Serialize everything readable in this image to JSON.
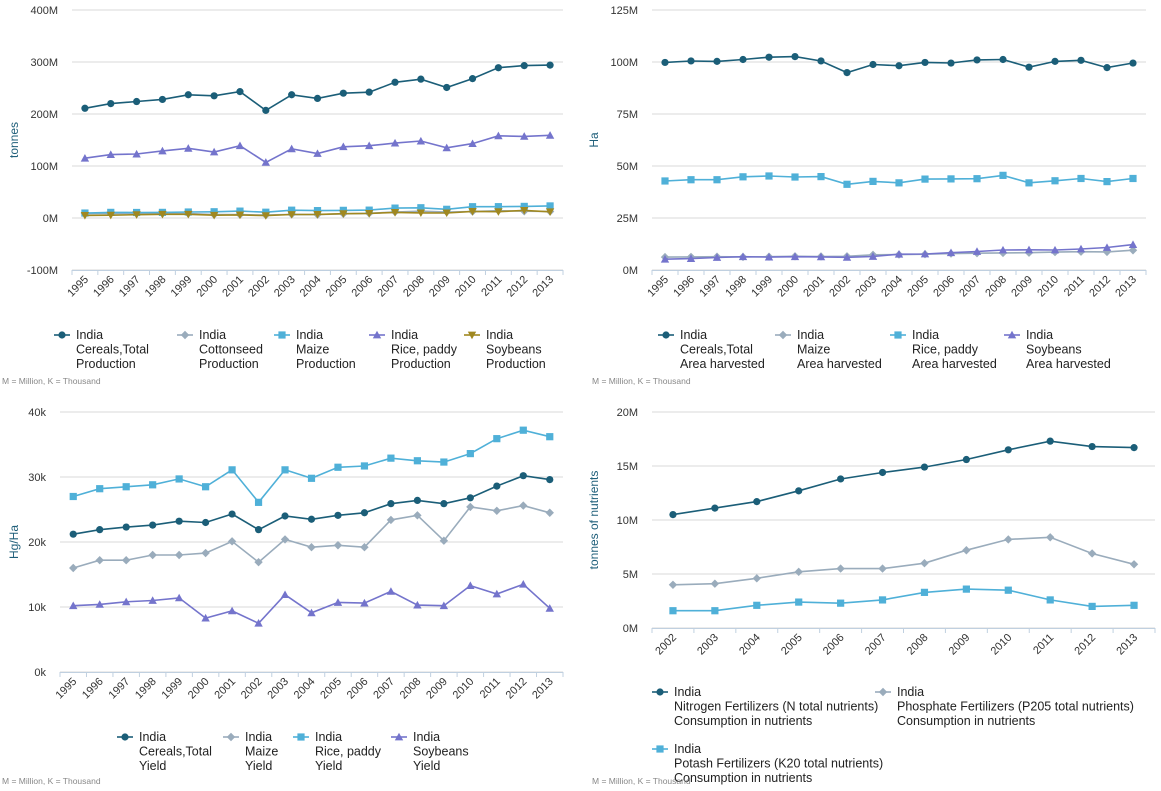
{
  "note": "M = Million, K = Thousand",
  "chart_data": [
    {
      "type": "line",
      "ylabel": "tonnes",
      "xlabel": "",
      "ylim": [
        -100000000,
        400000000
      ],
      "yticks": [
        -100000000,
        0,
        100000000,
        200000000,
        300000000,
        400000000
      ],
      "ytick_labels": [
        "-100M",
        "0M",
        "100M",
        "200M",
        "300M",
        "400M"
      ],
      "categories": [
        "1995",
        "1996",
        "1997",
        "1998",
        "1999",
        "2000",
        "2001",
        "2002",
        "2003",
        "2004",
        "2005",
        "2006",
        "2007",
        "2008",
        "2009",
        "2010",
        "2011",
        "2012",
        "2013"
      ],
      "series": [
        {
          "name": "India",
          "sublabel": [
            "Cereals,Total",
            "Production"
          ],
          "color": "#1b5e78",
          "marker": "circle",
          "values": [
            211000000,
            220000000,
            224000000,
            228000000,
            237000000,
            235000000,
            243000000,
            207000000,
            237000000,
            230000000,
            240000000,
            242000000,
            261000000,
            267000000,
            251000000,
            268000000,
            289000000,
            293000000,
            294000000
          ]
        },
        {
          "name": "India",
          "sublabel": [
            "Cottonseed",
            "Production"
          ],
          "color": "#9aacbc",
          "marker": "diamond",
          "values": [
            8500000,
            9000000,
            8500000,
            8500000,
            8500000,
            6500000,
            6500000,
            5500000,
            7000000,
            6500000,
            8000000,
            9000000,
            11500000,
            13000000,
            11500000,
            12500000,
            14000000,
            13000000,
            12500000
          ]
        },
        {
          "name": "India",
          "sublabel": [
            "Maize",
            "Production"
          ],
          "color": "#4fb0d8",
          "marker": "square",
          "values": [
            9500000,
            10800000,
            10600000,
            10800000,
            11500000,
            12000000,
            13200000,
            11100000,
            15000000,
            14200000,
            14700000,
            15100000,
            19000000,
            19700000,
            16700000,
            21700000,
            21800000,
            22300000,
            23200000
          ]
        },
        {
          "name": "India",
          "sublabel": [
            "Rice, paddy",
            "Production"
          ],
          "color": "#7474cc",
          "marker": "triangle",
          "values": [
            115000000,
            122000000,
            123000000,
            129000000,
            134000000,
            127000000,
            139000000,
            107000000,
            133000000,
            124000000,
            137000000,
            139000000,
            144000000,
            148000000,
            135000000,
            143000000,
            158000000,
            157000000,
            159000000
          ]
        },
        {
          "name": "India",
          "sublabel": [
            "Soybeans",
            "Production"
          ],
          "color": "#a08820",
          "marker": "triangle-down",
          "values": [
            5000000,
            5400000,
            6400000,
            7100000,
            7100000,
            5300000,
            5900000,
            4600000,
            6800000,
            6900000,
            8300000,
            8900000,
            10700000,
            9900000,
            9700000,
            12700000,
            12200000,
            14700000,
            12000000
          ]
        }
      ]
    },
    {
      "type": "line",
      "ylabel": "Ha",
      "xlabel": "",
      "ylim": [
        0,
        125000000
      ],
      "yticks": [
        0,
        25000000,
        50000000,
        75000000,
        100000000,
        125000000
      ],
      "ytick_labels": [
        "0M",
        "25M",
        "50M",
        "75M",
        "100M",
        "125M"
      ],
      "categories": [
        "1995",
        "1996",
        "1997",
        "1998",
        "1999",
        "2000",
        "2001",
        "2002",
        "2003",
        "2004",
        "2005",
        "2006",
        "2007",
        "2008",
        "2009",
        "2010",
        "2011",
        "2012",
        "2013"
      ],
      "series": [
        {
          "name": "India",
          "sublabel": [
            "Cereals,Total",
            "Area harvested"
          ],
          "color": "#1b5e78",
          "marker": "circle",
          "values": [
            99800000,
            100500000,
            100300000,
            101200000,
            102300000,
            102600000,
            100500000,
            94900000,
            98800000,
            98200000,
            99800000,
            99500000,
            101000000,
            101200000,
            97500000,
            100300000,
            100800000,
            97300000,
            99500000
          ]
        },
        {
          "name": "India",
          "sublabel": [
            "Maize",
            "Area harvested"
          ],
          "color": "#9aacbc",
          "marker": "diamond",
          "values": [
            6200000,
            6300000,
            6400000,
            6300000,
            6400000,
            6600000,
            6500000,
            6600000,
            7300000,
            7400000,
            7600000,
            7900000,
            8100000,
            8200000,
            8300000,
            8600000,
            8800000,
            8700000,
            9500000
          ]
        },
        {
          "name": "India",
          "sublabel": [
            "Rice, paddy",
            "Area harvested"
          ],
          "color": "#4fb0d8",
          "marker": "square",
          "values": [
            42800000,
            43400000,
            43400000,
            44800000,
            45200000,
            44700000,
            44900000,
            41200000,
            42600000,
            41900000,
            43700000,
            43800000,
            43900000,
            45500000,
            41900000,
            42900000,
            44000000,
            42500000,
            44000000
          ]
        },
        {
          "name": "India",
          "sublabel": [
            "Soybeans",
            "Area harvested"
          ],
          "color": "#7474cc",
          "marker": "triangle",
          "values": [
            5200000,
            5500000,
            6000000,
            6400000,
            6200000,
            6400000,
            6300000,
            6100000,
            6500000,
            7600000,
            7700000,
            8300000,
            8900000,
            9600000,
            9700000,
            9600000,
            10100000,
            10800000,
            12200000
          ]
        }
      ]
    },
    {
      "type": "line",
      "ylabel": "Hg/Ha",
      "xlabel": "",
      "ylim": [
        0,
        40000
      ],
      "yticks": [
        0,
        10000,
        20000,
        30000,
        40000
      ],
      "ytick_labels": [
        "0k",
        "10k",
        "20k",
        "30k",
        "40k"
      ],
      "categories": [
        "1995",
        "1996",
        "1997",
        "1998",
        "1999",
        "2000",
        "2001",
        "2002",
        "2003",
        "2004",
        "2005",
        "2006",
        "2007",
        "2008",
        "2009",
        "2010",
        "2011",
        "2012",
        "2013"
      ],
      "series": [
        {
          "name": "India",
          "sublabel": [
            "Cereals,Total",
            "Yield"
          ],
          "color": "#1b5e78",
          "marker": "circle",
          "values": [
            21200,
            21900,
            22300,
            22600,
            23200,
            23000,
            24300,
            21900,
            24000,
            23500,
            24100,
            24500,
            25900,
            26400,
            25900,
            26800,
            28600,
            30200,
            29600
          ]
        },
        {
          "name": "India",
          "sublabel": [
            "Maize",
            "Yield"
          ],
          "color": "#9aacbc",
          "marker": "diamond",
          "values": [
            16000,
            17200,
            17200,
            18000,
            18000,
            18300,
            20100,
            16900,
            20400,
            19200,
            19500,
            19200,
            23400,
            24100,
            20200,
            25400,
            24800,
            25600,
            24500
          ]
        },
        {
          "name": "India",
          "sublabel": [
            "Rice, paddy",
            "Yield"
          ],
          "color": "#4fb0d8",
          "marker": "square",
          "values": [
            27000,
            28200,
            28500,
            28800,
            29700,
            28500,
            31100,
            26100,
            31100,
            29800,
            31500,
            31700,
            32900,
            32500,
            32300,
            33600,
            35900,
            37200,
            36200
          ]
        },
        {
          "name": "India",
          "sublabel": [
            "Soybeans",
            "Yield"
          ],
          "color": "#7474cc",
          "marker": "triangle",
          "values": [
            10200,
            10400,
            10800,
            11000,
            11400,
            8300,
            9400,
            7500,
            11900,
            9100,
            10700,
            10600,
            12400,
            10300,
            10200,
            13300,
            12000,
            13500,
            9800
          ]
        }
      ]
    },
    {
      "type": "line",
      "ylabel": "tonnes of nutrients",
      "xlabel": "",
      "ylim": [
        0,
        20000000
      ],
      "yticks": [
        0,
        5000000,
        10000000,
        15000000,
        20000000
      ],
      "ytick_labels": [
        "0M",
        "5M",
        "10M",
        "15M",
        "20M"
      ],
      "categories": [
        "2002",
        "2003",
        "2004",
        "2005",
        "2006",
        "2007",
        "2008",
        "2009",
        "2010",
        "2011",
        "2012",
        "2013"
      ],
      "series": [
        {
          "name": "India",
          "sublabel": [
            "Nitrogen Fertilizers (N total nutrients)",
            "Consumption in nutrients"
          ],
          "color": "#1b5e78",
          "marker": "circle",
          "values": [
            10500000,
            11100000,
            11700000,
            12700000,
            13800000,
            14400000,
            14900000,
            15600000,
            16500000,
            17300000,
            16800000,
            16700000
          ]
        },
        {
          "name": "India",
          "sublabel": [
            "Phosphate Fertilizers (P205 total nutrients)",
            "Consumption in nutrients"
          ],
          "color": "#9aacbc",
          "marker": "diamond",
          "values": [
            4000000,
            4100000,
            4600000,
            5200000,
            5500000,
            5500000,
            6000000,
            7200000,
            8200000,
            8400000,
            6900000,
            5900000
          ]
        },
        {
          "name": "India",
          "sublabel": [
            "Potash Fertilizers (K20 total nutrients)",
            "Consumption in nutrients"
          ],
          "color": "#4fb0d8",
          "marker": "square",
          "values": [
            1600000,
            1600000,
            2100000,
            2400000,
            2300000,
            2600000,
            3300000,
            3600000,
            3500000,
            2600000,
            2000000,
            2100000
          ]
        }
      ]
    }
  ]
}
